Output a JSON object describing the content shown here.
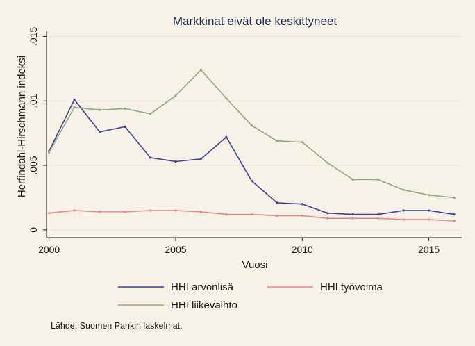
{
  "chart_data": {
    "type": "line",
    "title": "Markkinat eivät ole keskittyneet",
    "xlabel": "Vuosi",
    "ylabel": "Herfindahl-Hirschmann indeksi",
    "x": [
      2000,
      2001,
      2002,
      2003,
      2004,
      2005,
      2006,
      2007,
      2008,
      2009,
      2010,
      2011,
      2012,
      2013,
      2014,
      2015,
      2016
    ],
    "xlim": [
      1999.9,
      2016.3
    ],
    "ylim": [
      -0.0006,
      0.0154
    ],
    "xticks": [
      2000,
      2005,
      2010,
      2015
    ],
    "xtick_labels": [
      "2000",
      "2005",
      "2010",
      "2015"
    ],
    "yticks": [
      0,
      0.005,
      0.01,
      0.015
    ],
    "ytick_labels": [
      "0",
      ".005",
      ".01",
      ".015"
    ],
    "grid": true,
    "legend_position": "bottom",
    "series": [
      {
        "name": "HHI arvonlisä",
        "color": "#3c3f8f",
        "values": [
          0.0061,
          0.0101,
          0.0076,
          0.008,
          0.0056,
          0.0053,
          0.0055,
          0.0072,
          0.0038,
          0.0021,
          0.002,
          0.0013,
          0.0012,
          0.0012,
          0.0015,
          0.0015,
          0.0012
        ]
      },
      {
        "name": "HHI työvoima",
        "color": "#e8888a",
        "values": [
          0.0013,
          0.0015,
          0.0014,
          0.0014,
          0.0015,
          0.0015,
          0.0014,
          0.0012,
          0.0012,
          0.0011,
          0.0011,
          0.0009,
          0.0009,
          0.0009,
          0.0008,
          0.0008,
          0.0007
        ]
      },
      {
        "name": "HHI liikevaihto",
        "color": "#8fa586",
        "values": [
          0.006,
          0.0095,
          0.0093,
          0.0094,
          0.009,
          0.0104,
          0.0124,
          0.0102,
          0.0081,
          0.0069,
          0.0068,
          0.0052,
          0.0039,
          0.0039,
          0.0031,
          0.0027,
          0.0025
        ]
      }
    ],
    "source_note": "Lähde: Suomen Pankin laskelmat."
  }
}
